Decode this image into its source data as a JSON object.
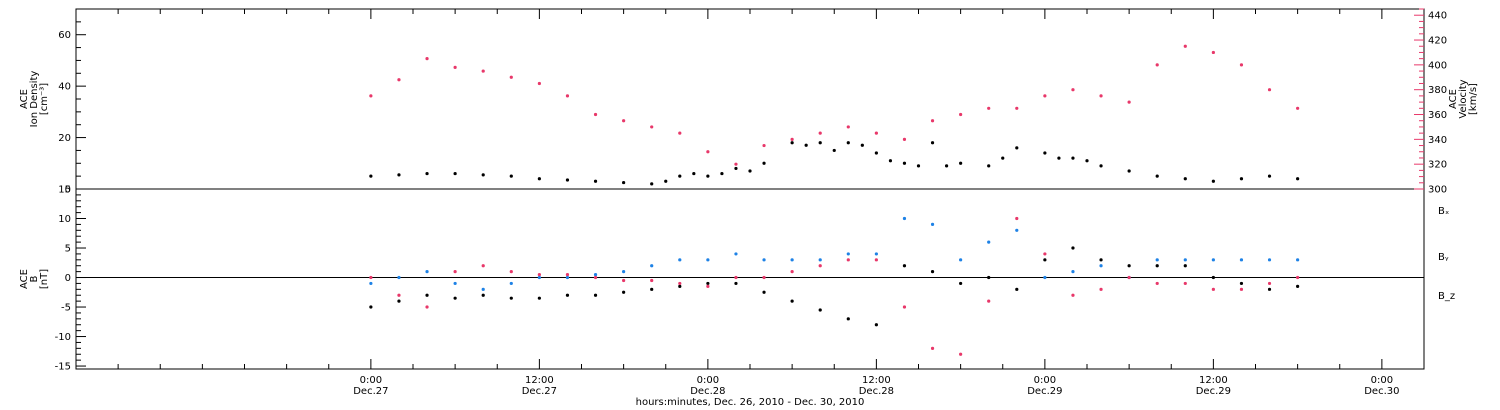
{
  "chart_data": [
    {
      "type": "scatter",
      "panel": "top",
      "ylabel": [
        "ACE",
        "Ion Density",
        "[cm⁻³]"
      ],
      "ylim": [
        0,
        70
      ],
      "yticks": [
        0,
        20,
        40,
        60
      ],
      "y2label": [
        "ACE",
        "Velocity",
        "[km/s]"
      ],
      "y2lim": [
        300,
        445
      ],
      "y2ticks": [
        300,
        320,
        340,
        360,
        380,
        400,
        420,
        440
      ],
      "series": [
        {
          "axis": "left",
          "color": "#000000",
          "x": [
            0,
            2,
            4,
            6,
            8,
            10,
            12,
            14,
            16,
            18,
            20,
            21,
            22,
            23,
            24,
            25,
            26,
            27,
            28,
            30,
            31,
            32,
            33,
            34,
            35,
            36,
            37,
            38,
            39,
            40,
            41,
            42,
            44,
            45,
            46,
            48,
            49,
            50,
            51,
            52,
            54,
            56,
            58,
            60,
            62,
            64,
            66
          ],
          "y": [
            5,
            5.5,
            6,
            6,
            5.5,
            5,
            4,
            3.5,
            3,
            2.5,
            2,
            3,
            5,
            6,
            5,
            6,
            8,
            7,
            10,
            18,
            17,
            18,
            15,
            18,
            17,
            14,
            11,
            10,
            9,
            18,
            9,
            10,
            9,
            12,
            16,
            14,
            12,
            12,
            11,
            9,
            7,
            5,
            4,
            3,
            4,
            5,
            4
          ]
        },
        {
          "axis": "right",
          "color": "#e8386a",
          "x": [
            0,
            2,
            4,
            6,
            8,
            10,
            12,
            14,
            16,
            18,
            20,
            22,
            24,
            26,
            28,
            30,
            32,
            34,
            36,
            38,
            40,
            42,
            44,
            46,
            48,
            50,
            52,
            54,
            56,
            58,
            60,
            62,
            64,
            66
          ],
          "y": [
            375,
            388,
            405,
            398,
            395,
            390,
            385,
            375,
            360,
            355,
            350,
            345,
            330,
            320,
            335,
            340,
            345,
            350,
            345,
            340,
            355,
            360,
            365,
            365,
            375,
            380,
            375,
            370,
            400,
            415,
            410,
            400,
            380,
            365
          ]
        }
      ]
    },
    {
      "type": "scatter",
      "panel": "bottom",
      "ylabel": [
        "ACE",
        "B",
        "[nT]"
      ],
      "ylim": [
        -15.5,
        15
      ],
      "yticks": [
        -15,
        -10,
        -5,
        0,
        5,
        10,
        15
      ],
      "xlabel": "hours:minutes, Dec. 26, 2010 - Dec. 30, 2010",
      "xticks": [
        {
          "time": "0:00",
          "date": "Dec.27"
        },
        {
          "time": "12:00",
          "date": "Dec.27"
        },
        {
          "time": "0:00",
          "date": "Dec.28"
        },
        {
          "time": "12:00",
          "date": "Dec.28"
        },
        {
          "time": "0:00",
          "date": "Dec.29"
        },
        {
          "time": "12:00",
          "date": "Dec.29"
        },
        {
          "time": "0:00",
          "date": "Dec.30"
        }
      ],
      "series": [
        {
          "name": "Bₓ",
          "color": "#000000",
          "x": [
            0,
            2,
            4,
            6,
            8,
            10,
            12,
            14,
            16,
            18,
            20,
            22,
            24,
            26,
            28,
            30,
            32,
            34,
            36,
            38,
            40,
            42,
            44,
            46,
            48,
            50,
            52,
            54,
            56,
            58,
            60,
            62,
            64,
            66
          ],
          "y": [
            -5,
            -4,
            -3,
            -3.5,
            -3,
            -3.5,
            -3.5,
            -3,
            -3,
            -2.5,
            -2,
            -1.5,
            -1,
            -1,
            -2.5,
            -4,
            -5.5,
            -7,
            -8,
            2,
            1,
            -1,
            0,
            -2,
            3,
            5,
            3,
            2,
            2,
            2,
            0,
            -1,
            -2,
            -1.5
          ]
        },
        {
          "name": "Bᵧ",
          "color": "#1e82e6",
          "x": [
            0,
            2,
            4,
            6,
            8,
            10,
            12,
            14,
            16,
            18,
            20,
            22,
            24,
            26,
            28,
            30,
            32,
            34,
            36,
            38,
            40,
            42,
            44,
            46,
            48,
            50,
            52,
            54,
            56,
            58,
            60,
            62,
            64,
            66
          ],
          "y": [
            -1,
            0,
            1,
            -1,
            -2,
            -1,
            0,
            0,
            0.5,
            1,
            2,
            3,
            3,
            4,
            3,
            3,
            3,
            4,
            4,
            10,
            9,
            3,
            6,
            8,
            0,
            1,
            2,
            0,
            3,
            3,
            3,
            3,
            3,
            3
          ]
        },
        {
          "name": "B_z",
          "color": "#e8386a",
          "x": [
            0,
            2,
            4,
            6,
            8,
            10,
            12,
            14,
            16,
            18,
            20,
            22,
            24,
            26,
            28,
            30,
            32,
            34,
            36,
            38,
            40,
            42,
            44,
            46,
            48,
            50,
            52,
            54,
            56,
            58,
            60,
            62,
            64,
            66
          ],
          "y": [
            0,
            -3,
            -5,
            1,
            2,
            1,
            0.5,
            0.5,
            0,
            -0.5,
            -0.5,
            -1,
            -1.5,
            0,
            0,
            1,
            2,
            3,
            3,
            -5,
            -12,
            -13,
            -4,
            10,
            4,
            -3,
            -2,
            0,
            -1,
            -1,
            -2,
            -2,
            -1,
            0
          ]
        }
      ]
    }
  ]
}
